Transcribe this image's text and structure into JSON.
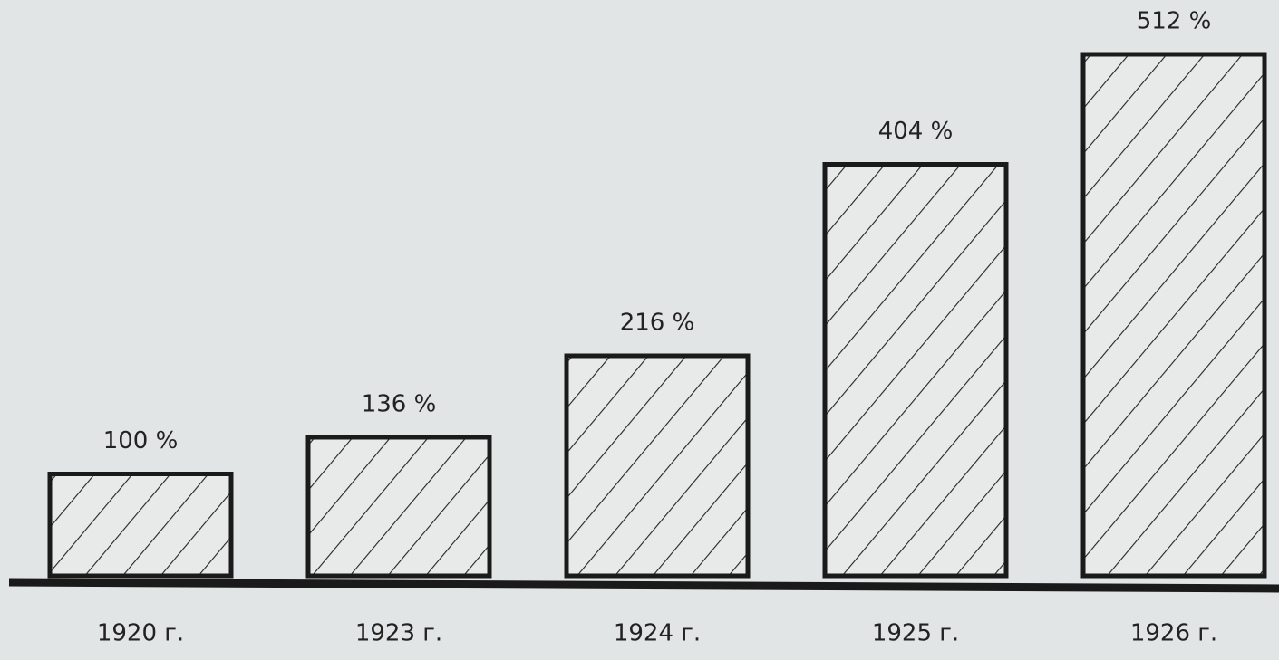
{
  "chart_data": {
    "type": "bar",
    "categories": [
      "1920 г.",
      "1923 г.",
      "1924 г.",
      "1925 г.",
      "1926 г."
    ],
    "values": [
      100,
      136,
      216,
      404,
      512
    ],
    "value_labels": [
      "100 %",
      "136 %",
      "216 %",
      "404 %",
      "512 %"
    ],
    "color": "#1a1a1a"
  }
}
